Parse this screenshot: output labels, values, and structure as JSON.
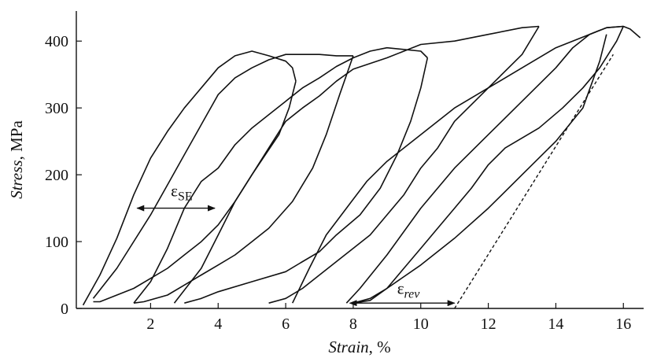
{
  "chart_data": {
    "type": "line",
    "title": "",
    "xlabel": {
      "italic": "Strain",
      "rest": ", %"
    },
    "ylabel": {
      "italic": "Stress",
      "rest": ", MPa"
    },
    "xlim": [
      -0.2,
      16.6
    ],
    "ylim": [
      0,
      445
    ],
    "xticks": [
      2,
      4,
      6,
      8,
      10,
      12,
      14,
      16
    ],
    "yticks": [
      0,
      100,
      200,
      300,
      400
    ],
    "grid": false,
    "legend": "none",
    "series": [
      {
        "loading": [
          [
            0,
            5
          ],
          [
            0.5,
            50
          ],
          [
            1,
            105
          ],
          [
            1.5,
            170
          ],
          [
            2,
            225
          ],
          [
            2.5,
            265
          ],
          [
            3,
            300
          ],
          [
            3.5,
            330
          ],
          [
            4,
            360
          ],
          [
            4.5,
            378
          ],
          [
            5,
            385
          ],
          [
            5.5,
            378
          ],
          [
            6,
            370
          ],
          [
            6.2,
            360
          ],
          [
            6.3,
            340
          ]
        ],
        "unloading": [
          [
            6.3,
            340
          ],
          [
            6.1,
            300
          ],
          [
            5.8,
            260
          ],
          [
            5.4,
            230
          ],
          [
            5,
            200
          ],
          [
            4.5,
            160
          ],
          [
            4,
            125
          ],
          [
            3.5,
            100
          ],
          [
            3,
            80
          ],
          [
            2.5,
            60
          ],
          [
            2,
            45
          ],
          [
            1.5,
            30
          ],
          [
            1,
            20
          ],
          [
            0.5,
            10
          ],
          [
            0.3,
            10
          ]
        ]
      },
      {
        "loading": [
          [
            0.3,
            15
          ],
          [
            1,
            60
          ],
          [
            2,
            140
          ],
          [
            2.5,
            185
          ],
          [
            3,
            230
          ],
          [
            3.5,
            275
          ],
          [
            4,
            320
          ],
          [
            4.5,
            345
          ],
          [
            5,
            360
          ],
          [
            5.5,
            372
          ],
          [
            6,
            380
          ],
          [
            7,
            380
          ],
          [
            7.5,
            378
          ],
          [
            8,
            378
          ]
        ],
        "unloading": [
          [
            8,
            378
          ],
          [
            7.6,
            320
          ],
          [
            7.2,
            260
          ],
          [
            6.8,
            210
          ],
          [
            6.2,
            160
          ],
          [
            5.5,
            120
          ],
          [
            5,
            100
          ],
          [
            4.5,
            80
          ],
          [
            4,
            65
          ],
          [
            3.5,
            50
          ],
          [
            3,
            35
          ],
          [
            2.5,
            20
          ],
          [
            1.8,
            10
          ],
          [
            1.5,
            8
          ]
        ]
      },
      {
        "loading": [
          [
            1.5,
            8
          ],
          [
            2,
            40
          ],
          [
            2.5,
            90
          ],
          [
            3,
            150
          ],
          [
            3.5,
            190
          ],
          [
            4,
            210
          ],
          [
            4.5,
            245
          ],
          [
            5,
            270
          ],
          [
            5.5,
            290
          ],
          [
            6,
            310
          ],
          [
            6.5,
            330
          ],
          [
            7,
            345
          ],
          [
            7.5,
            362
          ],
          [
            8,
            375
          ],
          [
            8.5,
            385
          ],
          [
            9,
            390
          ],
          [
            10,
            385
          ],
          [
            10.2,
            375
          ]
        ],
        "unloading": [
          [
            10.2,
            375
          ],
          [
            10,
            330
          ],
          [
            9.7,
            280
          ],
          [
            9.3,
            230
          ],
          [
            8.8,
            180
          ],
          [
            8.2,
            140
          ],
          [
            7.5,
            110
          ],
          [
            7,
            85
          ],
          [
            6.5,
            70
          ],
          [
            6,
            55
          ],
          [
            5,
            40
          ],
          [
            4,
            25
          ],
          [
            3.5,
            15
          ],
          [
            3,
            8
          ]
        ]
      },
      {
        "loading": [
          [
            2.7,
            8
          ],
          [
            3.5,
            60
          ],
          [
            4,
            110
          ],
          [
            4.5,
            160
          ],
          [
            5,
            200
          ],
          [
            5.5,
            240
          ],
          [
            6,
            280
          ],
          [
            6.5,
            300
          ],
          [
            7,
            318
          ],
          [
            7.5,
            340
          ],
          [
            8,
            358
          ],
          [
            9,
            375
          ],
          [
            9.5,
            385
          ],
          [
            10,
            395
          ],
          [
            11,
            400
          ],
          [
            12,
            410
          ],
          [
            13,
            420
          ],
          [
            13.5,
            422
          ]
        ],
        "unloading": [
          [
            13.5,
            422
          ],
          [
            13,
            380
          ],
          [
            12,
            330
          ],
          [
            11,
            280
          ],
          [
            10.5,
            240
          ],
          [
            10,
            210
          ],
          [
            9.5,
            170
          ],
          [
            9,
            140
          ],
          [
            8.5,
            110
          ],
          [
            8,
            90
          ],
          [
            7.5,
            70
          ],
          [
            7,
            50
          ],
          [
            6.5,
            30
          ],
          [
            6,
            15
          ],
          [
            5.5,
            8
          ]
        ]
      },
      {
        "loading": [
          [
            6.2,
            8
          ],
          [
            6.7,
            60
          ],
          [
            7.2,
            110
          ],
          [
            7.8,
            150
          ],
          [
            8.4,
            190
          ],
          [
            9,
            220
          ],
          [
            10,
            260
          ],
          [
            11,
            300
          ],
          [
            12,
            330
          ],
          [
            13,
            360
          ],
          [
            14,
            390
          ],
          [
            15,
            410
          ],
          [
            15.5,
            420
          ],
          [
            16,
            422
          ]
        ],
        "unloading": [
          [
            16,
            422
          ],
          [
            15.8,
            400
          ],
          [
            15.3,
            360
          ],
          [
            14.8,
            330
          ],
          [
            14.2,
            300
          ],
          [
            13.5,
            270
          ],
          [
            12.5,
            240
          ],
          [
            12,
            215
          ],
          [
            11.5,
            180
          ],
          [
            11,
            150
          ],
          [
            10.5,
            120
          ],
          [
            10,
            90
          ],
          [
            9.5,
            60
          ],
          [
            9,
            30
          ],
          [
            8.5,
            12
          ],
          [
            8,
            8
          ]
        ]
      },
      {
        "loading": [
          [
            7.8,
            8
          ],
          [
            8.2,
            30
          ],
          [
            9,
            80
          ],
          [
            10,
            150
          ],
          [
            11,
            210
          ],
          [
            12,
            260
          ],
          [
            13,
            310
          ],
          [
            14,
            360
          ],
          [
            14.5,
            390
          ],
          [
            15,
            410
          ],
          [
            15.5,
            420
          ],
          [
            16,
            422
          ],
          [
            16.2,
            418
          ],
          [
            16.5,
            405
          ]
        ],
        "unloading": [
          [
            15.5,
            410
          ],
          [
            15.3,
            370
          ],
          [
            14.8,
            300
          ],
          [
            14,
            250
          ],
          [
            13,
            200
          ],
          [
            12,
            150
          ],
          [
            11,
            105
          ],
          [
            10,
            65
          ],
          [
            9,
            30
          ],
          [
            8.5,
            15
          ],
          [
            8,
            8
          ]
        ]
      }
    ],
    "unload_guide": [
      [
        11,
        0
      ],
      [
        15.7,
        380
      ]
    ],
    "annotations": [
      {
        "id": "eps_se",
        "symbol": "ε",
        "subscript": "SE",
        "from": [
          1.6,
          150
        ],
        "to": [
          3.9,
          150
        ],
        "label_pos": [
          2.6,
          168
        ]
      },
      {
        "id": "eps_rev",
        "symbol": "ε",
        "subscript": "rev",
        "from": [
          7.9,
          8
        ],
        "to": [
          11.0,
          8
        ],
        "label_pos": [
          9.3,
          22
        ]
      }
    ]
  }
}
